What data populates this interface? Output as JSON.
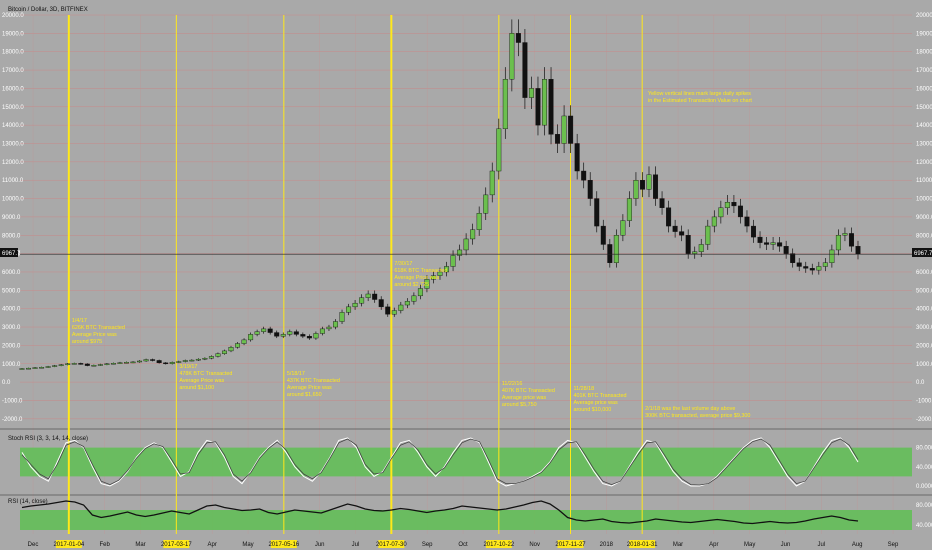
{
  "header": {
    "title": "Bitcoin / Dollar, 3D, BITFINEX",
    "stoch_label": "Stoch RSI (3, 3, 14, 14, close)",
    "rsi_label": "RSI (14, close)",
    "price_tag": "6967.7"
  },
  "colors": {
    "background": "#a9a9a9",
    "grid": "#c98a8a",
    "bull": "#6bbf4e",
    "bear": "#111111",
    "marker": "#ffe81a",
    "band": "#5fbf54"
  },
  "chart_data": [
    {
      "type": "candlestick",
      "title": "Bitcoin / Dollar, 3D, BITFINEX",
      "x_labels": [
        "Dec",
        "2017-01-04",
        "Feb",
        "Mar",
        "2017-03-17",
        "Apr",
        "May",
        "2017-05-16",
        "Jun",
        "Jul",
        "2017-07-30",
        "Sep",
        "Oct",
        "2017-10-22",
        "Nov",
        "2017-11-27",
        "2018",
        "2018-01-31",
        "Mar",
        "Apr",
        "May",
        "Jun",
        "Jul",
        "Aug",
        "Sep"
      ],
      "ylim": [
        -2500,
        20000
      ],
      "y_ticks": [
        -2000,
        -1000,
        0,
        1000,
        2000,
        3000,
        4000,
        5000,
        6000,
        7000,
        8000,
        9000,
        10000,
        11000,
        12000,
        13000,
        14000,
        15000,
        16000,
        17000,
        18000,
        19000,
        20000
      ],
      "y_tick_labels": [
        "-2000.0",
        "-1000.0",
        "0.0",
        "1000.0",
        "2000.0",
        "3000.0",
        "4000.0",
        "5000.0",
        "6000.0",
        "7000.0",
        "8000.0",
        "9000.0",
        "10000.0",
        "11000.0",
        "12000.0",
        "13000.0",
        "14000.0",
        "15000.0",
        "16000.0",
        "17000.0",
        "18000.0",
        "19000.0",
        "20000.0"
      ],
      "last_price": 6967.7,
      "close_series": [
        740,
        760,
        790,
        810,
        850,
        900,
        950,
        1000,
        1020,
        990,
        900,
        920,
        960,
        1000,
        1030,
        1060,
        1080,
        1100,
        1150,
        1230,
        1180,
        1050,
        1000,
        1080,
        1120,
        1180,
        1200,
        1250,
        1300,
        1400,
        1550,
        1700,
        1900,
        2100,
        2300,
        2600,
        2750,
        2900,
        2700,
        2500,
        2600,
        2750,
        2600,
        2500,
        2400,
        2650,
        2900,
        3000,
        3300,
        3800,
        4100,
        4300,
        4600,
        4800,
        4500,
        4100,
        3700,
        3900,
        4200,
        4400,
        4700,
        5100,
        5600,
        5800,
        6000,
        6300,
        6900,
        7200,
        7800,
        8300,
        9200,
        10200,
        11500,
        13800,
        16500,
        19000,
        18500,
        15500,
        16000,
        14000,
        16500,
        13500,
        13000,
        14500,
        13000,
        11500,
        11000,
        10000,
        8500,
        7500,
        6500,
        8000,
        8800,
        10000,
        11000,
        10500,
        11300,
        10000,
        9500,
        8500,
        8200,
        8000,
        7000,
        7100,
        7500,
        8500,
        9000,
        9500,
        9800,
        9600,
        9000,
        8500,
        7900,
        7600,
        7500,
        7600,
        7400,
        7000,
        6500,
        6300,
        6200,
        6100,
        6300,
        6500,
        7200,
        8000,
        8100,
        7400,
        6967.7
      ],
      "markers": [
        {
          "date": "2017-01-04",
          "text": [
            "1/4/17",
            "626K BTC Transacted",
            "Average Price was",
            "around $975"
          ]
        },
        {
          "date": "2017-03-17",
          "text": [
            "3/19/17",
            "478K BTC Transacted",
            "Average Price was",
            "around $1,100"
          ]
        },
        {
          "date": "2017-05-16",
          "text": [
            "5/18/17",
            "437K BTC Transacted",
            "Average Price was",
            "around $1,650"
          ]
        },
        {
          "date": "2017-07-30",
          "text": [
            "7/30/17",
            "618K BTC Transacted",
            "Average Price was",
            "around $2,725"
          ]
        },
        {
          "date": "2017-10-22",
          "text": [
            "11/22/16",
            "407K BTC Transacted",
            "Average price was",
            "around $5,750"
          ]
        },
        {
          "date": "2017-11-27",
          "text": [
            "11/28/18",
            "401K BTC Transacted",
            "Average price was",
            "around $10,000"
          ]
        },
        {
          "date": "2018-01-31",
          "text": [
            "2/1/18 was the last volume day above",
            "300K BTC transacted, average price $9,300"
          ]
        }
      ],
      "note": [
        "Yellow vertical lines mark large daily spikes",
        "in the Estimated Transaction Value on chart"
      ]
    },
    {
      "type": "line",
      "title": "Stoch RSI (3, 3, 14, 14, close)",
      "ylim": [
        0,
        100
      ],
      "band": [
        20,
        80
      ],
      "y_tick_labels": [
        "80.0000",
        "40.0000",
        "0.0000"
      ],
      "series": [
        {
          "name": "K",
          "values": [
            70,
            40,
            20,
            10,
            50,
            90,
            95,
            80,
            40,
            5,
            0,
            10,
            30,
            60,
            80,
            90,
            80,
            50,
            20,
            30,
            70,
            95,
            90,
            60,
            20,
            5,
            30,
            60,
            80,
            95,
            70,
            40,
            20,
            10,
            30,
            60,
            95,
            100,
            80,
            40,
            20,
            30,
            60,
            90,
            95,
            70,
            40,
            20,
            40,
            70,
            95,
            100,
            90,
            50,
            10,
            0,
            5,
            10,
            20,
            30,
            50,
            80,
            95,
            90,
            60,
            30,
            5,
            0,
            10,
            40,
            70,
            95,
            90,
            60,
            30,
            10,
            0,
            0,
            5,
            20,
            40,
            60,
            80,
            95,
            100,
            80,
            50,
            20,
            0,
            10,
            40,
            70,
            95,
            100,
            80,
            50
          ]
        },
        {
          "name": "D",
          "values": [
            65,
            45,
            25,
            15,
            45,
            85,
            92,
            82,
            45,
            10,
            3,
            12,
            32,
            58,
            78,
            88,
            82,
            55,
            25,
            28,
            65,
            90,
            92,
            65,
            25,
            10,
            28,
            58,
            78,
            92,
            75,
            45,
            25,
            15,
            28,
            58,
            90,
            98,
            85,
            45,
            25,
            28,
            58,
            85,
            92,
            75,
            45,
            25,
            38,
            65,
            90,
            98,
            92,
            55,
            15,
            5,
            5,
            10,
            18,
            28,
            48,
            75,
            90,
            92,
            65,
            35,
            10,
            3,
            10,
            38,
            65,
            90,
            92,
            65,
            35,
            15,
            3,
            2,
            5,
            18,
            38,
            58,
            78,
            92,
            98,
            85,
            55,
            25,
            5,
            10,
            38,
            65,
            90,
            98,
            85,
            55
          ]
        }
      ]
    },
    {
      "type": "line",
      "title": "RSI (14, close)",
      "ylim": [
        30,
        90
      ],
      "band": [
        30,
        70
      ],
      "y_tick_labels": [
        "80.0000",
        "40.0000"
      ],
      "series": [
        {
          "name": "RSI",
          "values": [
            75,
            78,
            80,
            82,
            85,
            88,
            86,
            80,
            60,
            55,
            58,
            62,
            66,
            60,
            57,
            60,
            64,
            68,
            65,
            62,
            70,
            78,
            80,
            75,
            72,
            69,
            70,
            72,
            65,
            62,
            66,
            70,
            68,
            66,
            64,
            70,
            76,
            82,
            78,
            72,
            69,
            68,
            70,
            73,
            71,
            68,
            65,
            68,
            70,
            73,
            78,
            76,
            74,
            72,
            70,
            72,
            76,
            80,
            85,
            88,
            82,
            70,
            55,
            50,
            48,
            50,
            52,
            47,
            45,
            44,
            46,
            48,
            52,
            50,
            48,
            46,
            45,
            47,
            49,
            51,
            49,
            47,
            44,
            43,
            45,
            47,
            45,
            44,
            45,
            48,
            52,
            55,
            58,
            55,
            50,
            48
          ]
        }
      ]
    }
  ]
}
